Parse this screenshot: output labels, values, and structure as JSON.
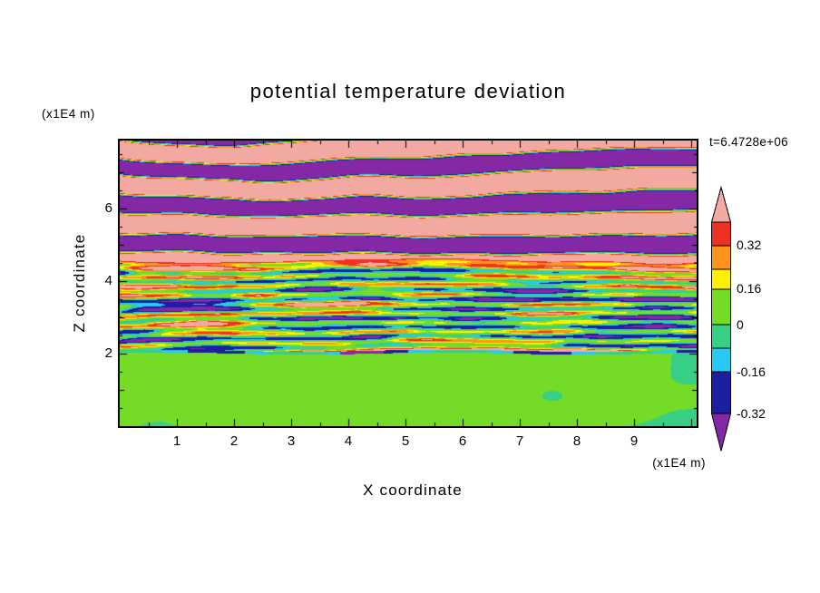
{
  "chart_data": {
    "type": "heatmap",
    "title": "potential temperature deviation",
    "xlabel": "X coordinate",
    "ylabel": "Z coordinate",
    "x_unit": "(x1E4 m)",
    "y_unit": "(x1E4 m)",
    "annotation": "t=6.4728e+06",
    "x_ticks": [
      "1",
      "2",
      "3",
      "4",
      "5",
      "6",
      "7",
      "8",
      "9"
    ],
    "y_ticks": [
      "2",
      "4",
      "6"
    ],
    "x_range": [
      0,
      10.1
    ],
    "z_range": [
      0,
      7.875
    ],
    "grid": false,
    "legend_position": "right",
    "colorbar": {
      "orientation": "vertical",
      "labels": [
        "0.32",
        "0.16",
        "0",
        "-0.16",
        "-0.32"
      ],
      "thresholds": [
        -0.32,
        -0.16,
        -0.08,
        0,
        0.16,
        0.24,
        0.32,
        0.4
      ],
      "band_colors": [
        "#8428A6",
        "#1E1EA0",
        "#27C9F5",
        "#37CF86",
        "#74DB27",
        "#FFF000",
        "#FF931E",
        "#EF3123",
        "#F2A9A2"
      ]
    },
    "field": {
      "z_boundaries": [
        2.0,
        4.2,
        4.8
      ],
      "description": "Stratified turbulence snapshot: smooth green blobs (|deviation|<0.1) below z~2 with a thin cyan interface line; fine horizontal multicolor filaments spanning every contour level for 2<z<4.4; large-amplitude wavy horizontal bands alternating between >0.32 (pink) and <-0.32 (violet) above z~4.4."
    }
  }
}
